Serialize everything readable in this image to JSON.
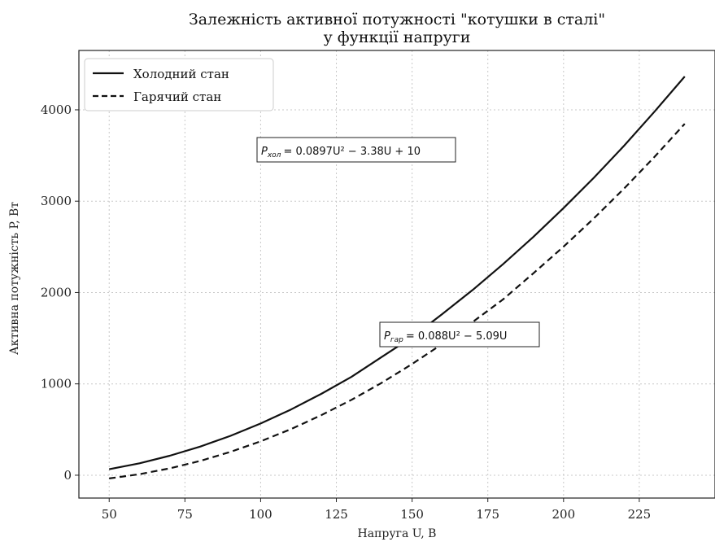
{
  "chart_data": {
    "type": "line",
    "title_line1": "Залежність активної потужності \"котушки в сталі\"",
    "title_line2": "у функції напруги",
    "xlabel": "Напруга U, В",
    "ylabel": "Активна потужність P, Вт",
    "xlim": [
      40,
      250
    ],
    "ylim": [
      -250,
      4650
    ],
    "xticks": [
      50,
      75,
      100,
      125,
      150,
      175,
      200,
      225
    ],
    "yticks": [
      0,
      1000,
      2000,
      3000,
      4000
    ],
    "grid": true,
    "legend_position": "top-left",
    "series": [
      {
        "name": "Холодний стан",
        "style": "solid",
        "color": "#111111",
        "x": [
          50,
          60,
          70,
          80,
          90,
          100,
          110,
          120,
          130,
          140,
          150,
          160,
          170,
          180,
          190,
          200,
          210,
          220,
          230,
          240
        ],
        "y": [
          65,
          130,
          213,
          313,
          431,
          566,
          719,
          890,
          1077,
          1295,
          1511,
          1766,
          2028,
          2310,
          2608,
          2924,
          3256,
          3608,
          3979,
          4365
        ]
      },
      {
        "name": "Гарячий стан",
        "style": "dashed",
        "color": "#111111",
        "x": [
          50,
          60,
          70,
          80,
          90,
          100,
          110,
          120,
          130,
          140,
          150,
          160,
          170,
          180,
          190,
          200,
          210,
          220,
          230,
          240
        ],
        "y": [
          -35,
          11,
          75,
          156,
          255,
          371,
          505,
          657,
          825,
          1012,
          1217,
          1438,
          1678,
          1924,
          2210,
          2502,
          2811,
          3139,
          3484,
          3847
        ]
      }
    ],
    "annotations": [
      {
        "label_main": "P",
        "label_sub": "хол",
        "equation": "= 0.0897U² − 3.38U + 10"
      },
      {
        "label_main": "P",
        "label_sub": "гар",
        "equation": "= 0.088U² − 5.09U"
      }
    ]
  }
}
